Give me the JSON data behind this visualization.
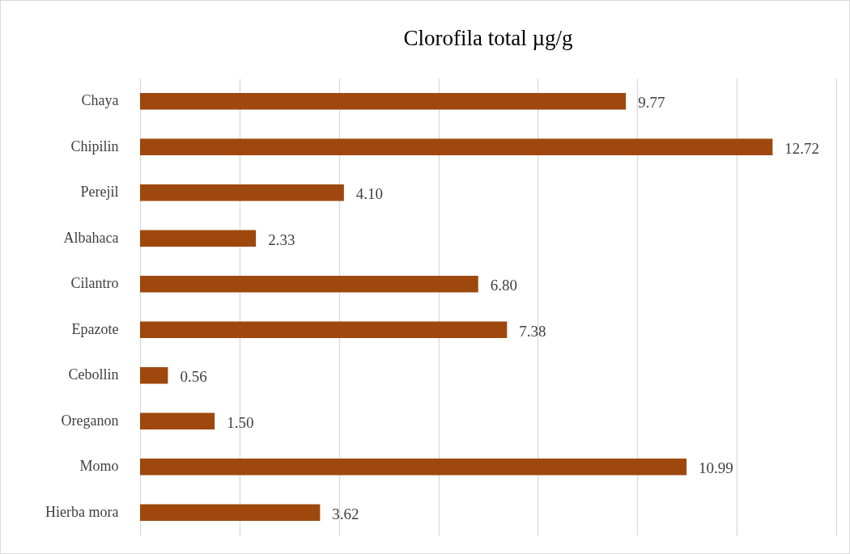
{
  "chart_data": {
    "type": "bar",
    "title": "Clorofila total µg/g",
    "orientation": "horizontal",
    "categories": [
      "Chaya",
      "Chipilin",
      "Perejil",
      "Albahaca",
      "Cilantro",
      "Epazote",
      "Cebollin",
      "Oreganon",
      "Momo",
      "Hierba mora"
    ],
    "values": [
      9.77,
      12.72,
      4.1,
      2.33,
      6.8,
      7.38,
      0.56,
      1.5,
      10.99,
      3.62
    ],
    "value_labels": [
      "9.77",
      "12.72",
      "4.10",
      "2.33",
      "6.80",
      "7.38",
      "0.56",
      "1.50",
      "10.99",
      "3.62"
    ],
    "color": "#9e480e",
    "xlim": [
      0,
      14
    ],
    "xticks": [
      0,
      2,
      4,
      6,
      8,
      10,
      12,
      14
    ],
    "grid": "x",
    "tick_labels": "y"
  }
}
